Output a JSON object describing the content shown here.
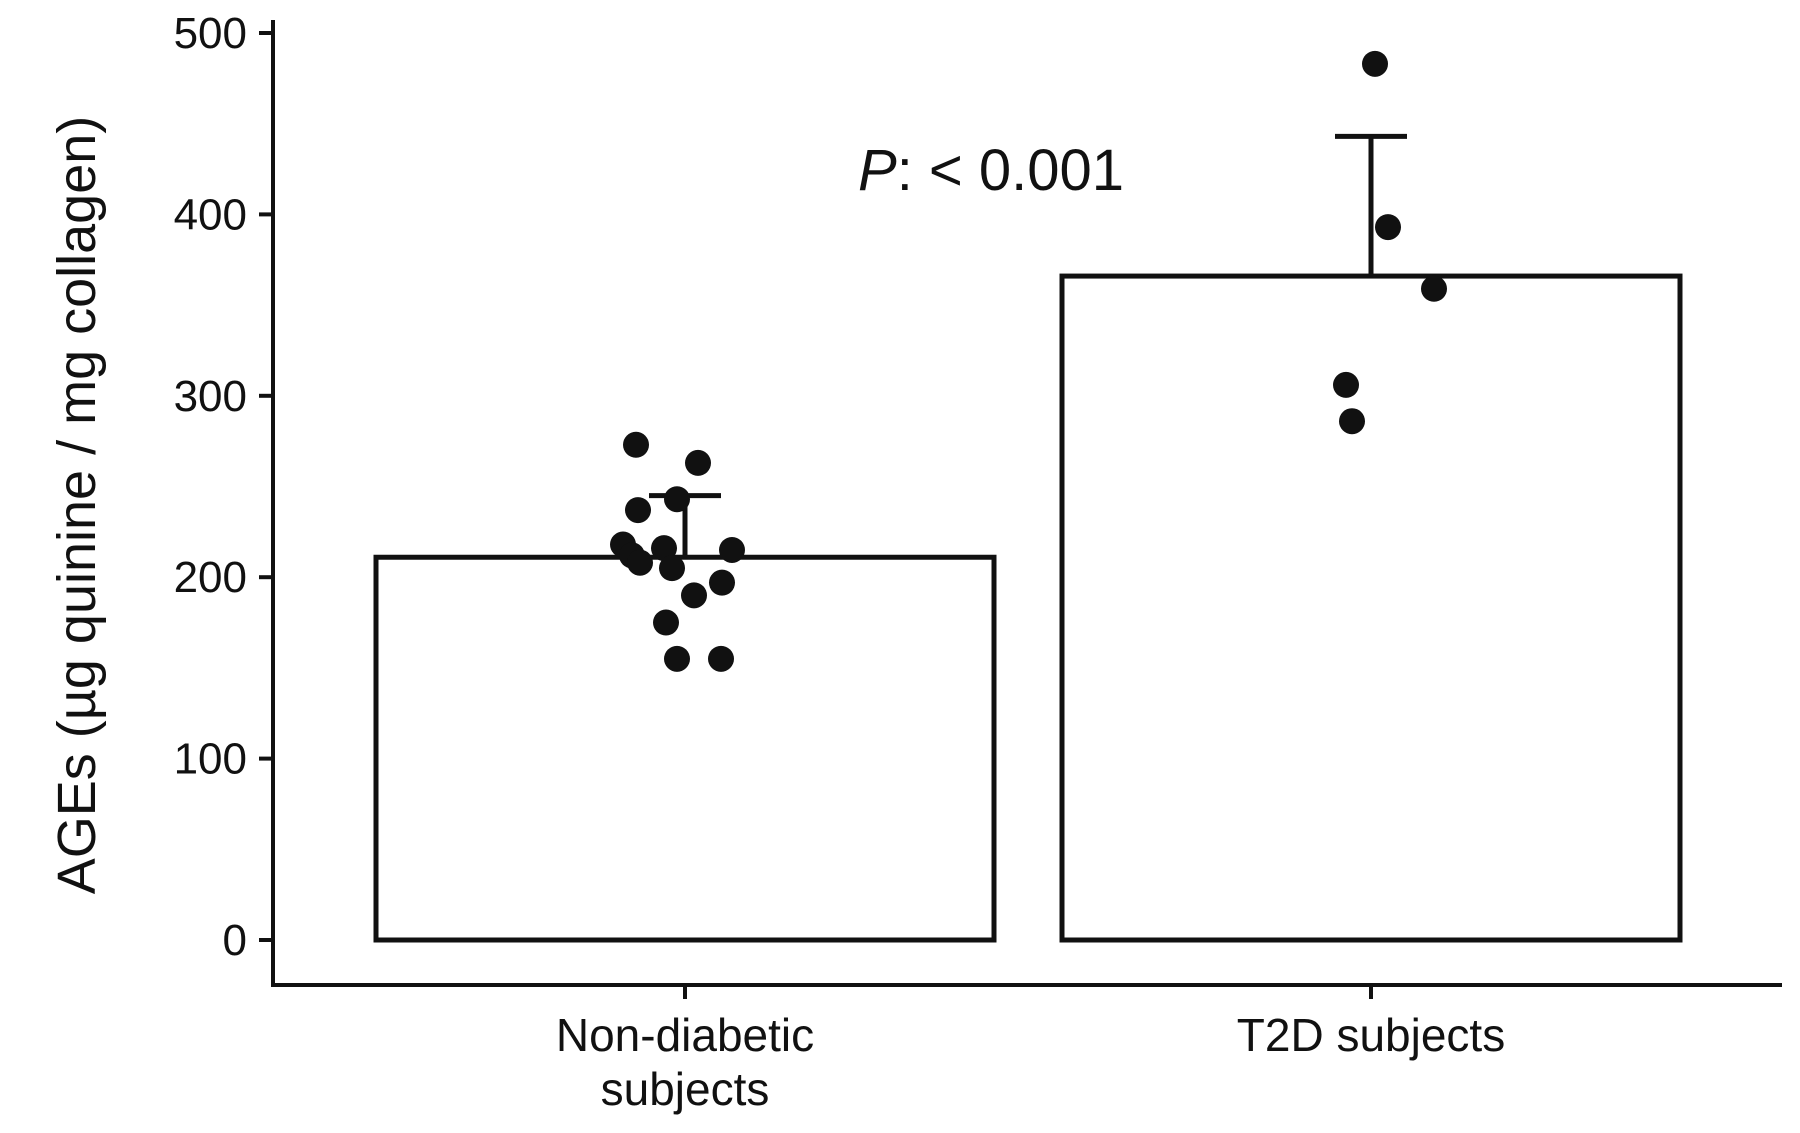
{
  "chart_data": {
    "type": "bar",
    "title": "",
    "xlabel": "",
    "ylabel": "AGEs (µg quinine / mg collagen)",
    "ylim": [
      0,
      500
    ],
    "yticks": [
      0,
      100,
      200,
      300,
      400,
      500
    ],
    "categories": [
      "Non-diabetic\nsubjects",
      "T2D subjects"
    ],
    "series": [
      {
        "values": [
          211,
          366
        ],
        "error_upper": [
          245,
          443
        ],
        "points": [
          [
            273,
            263,
            243,
            237,
            218,
            216,
            215,
            212,
            208,
            205,
            197,
            190,
            175,
            155,
            155
          ],
          [
            483,
            393,
            359,
            306,
            286
          ]
        ]
      }
    ],
    "annotation": {
      "prefix": "P",
      "text": ": < 0.001"
    },
    "grid": false,
    "legend": "none",
    "colors": {
      "bar_fill": "#ffffff",
      "bar_stroke": "#111111",
      "point": "#111111",
      "axis": "#111111"
    }
  }
}
